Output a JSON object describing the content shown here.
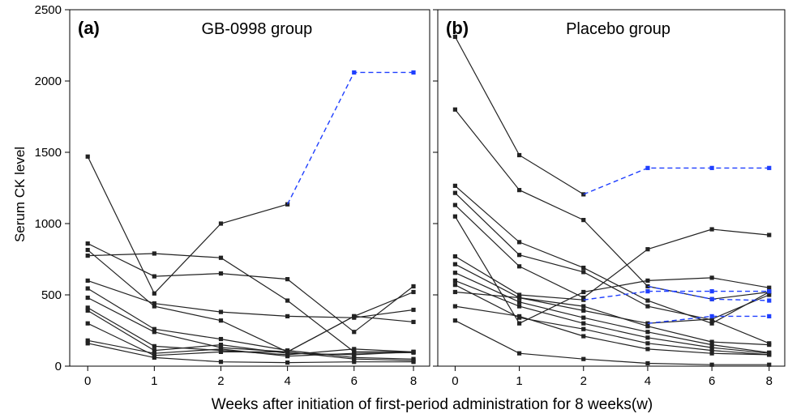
{
  "figure": {
    "ylabel": "Serum CK level",
    "xlabel": "Weeks after initiation of first-period administration for 8 weeks(w)"
  },
  "chart_data": [
    {
      "type": "line",
      "panel_tag": "(a)",
      "title": "GB-0998 group",
      "ylabel": "Serum CK level",
      "xlabel": "Weeks after initiation of first-period administration for 8 weeks(w)",
      "categories": [
        "0",
        "1",
        "2",
        "4",
        "6",
        "8"
      ],
      "y_ticks": [
        "0",
        "500",
        "1000",
        "1500",
        "2000",
        "2500"
      ],
      "ylim": [
        0,
        2500
      ],
      "grid": false,
      "marker": "square",
      "colors": {
        "subject": "#222222",
        "extrapolated": "#1f3fff",
        "axes": "#000000"
      },
      "series": [
        {
          "values": [
            1470,
            510,
            1000,
            1135,
            null,
            null
          ],
          "style": "solid"
        },
        {
          "values": [
            null,
            null,
            null,
            1135,
            2060,
            2060
          ],
          "style": "dashed"
        },
        {
          "values": [
            860,
            630,
            650,
            610,
            240,
            560
          ],
          "style": "solid"
        },
        {
          "values": [
            815,
            420,
            320,
            100,
            350,
            310
          ],
          "style": "solid"
        },
        {
          "values": [
            775,
            790,
            760,
            460,
            100,
            100
          ],
          "style": "solid"
        },
        {
          "values": [
            600,
            440,
            380,
            350,
            340,
            395
          ],
          "style": "solid"
        },
        {
          "values": [
            545,
            260,
            190,
            110,
            60,
            50
          ],
          "style": "solid"
        },
        {
          "values": [
            480,
            240,
            130,
            100,
            50,
            40
          ],
          "style": "solid"
        },
        {
          "values": [
            410,
            140,
            110,
            80,
            120,
            100
          ],
          "style": "solid"
        },
        {
          "values": [
            390,
            110,
            150,
            90,
            80,
            100
          ],
          "style": "solid"
        },
        {
          "values": [
            300,
            75,
            100,
            100,
            350,
            520
          ],
          "style": "solid"
        },
        {
          "values": [
            180,
            90,
            120,
            70,
            90,
            95
          ],
          "style": "solid"
        },
        {
          "values": [
            160,
            60,
            30,
            25,
            30,
            30
          ],
          "style": "solid"
        }
      ]
    },
    {
      "type": "line",
      "panel_tag": "(b)",
      "title": "Placebo group",
      "ylabel": "Serum CK level",
      "xlabel": "Weeks after initiation of first-period administration for 8 weeks(w)",
      "categories": [
        "0",
        "1",
        "2",
        "4",
        "6",
        "8"
      ],
      "y_ticks": [
        "0",
        "500",
        "1000",
        "1500",
        "2000",
        "2500"
      ],
      "ylim": [
        0,
        2500
      ],
      "grid": false,
      "marker": "square",
      "colors": {
        "subject": "#222222",
        "extrapolated": "#1f3fff",
        "axes": "#000000"
      },
      "series": [
        {
          "values": [
            2310,
            1480,
            1205,
            null,
            null,
            null
          ],
          "style": "solid"
        },
        {
          "values": [
            null,
            null,
            1205,
            1390,
            1390,
            1390
          ],
          "style": "dashed"
        },
        {
          "values": [
            1800,
            1235,
            1025,
            560,
            470,
            520
          ],
          "style": "solid"
        },
        {
          "values": [
            null,
            null,
            null,
            560,
            470,
            460
          ],
          "style": "dashed"
        },
        {
          "values": [
            1265,
            870,
            690,
            460,
            300,
            520
          ],
          "style": "solid"
        },
        {
          "values": [
            1215,
            780,
            660,
            420,
            325,
            160
          ],
          "style": "solid"
        },
        {
          "values": [
            1130,
            700,
            480,
            820,
            960,
            920
          ],
          "style": "solid"
        },
        {
          "values": [
            1050,
            300,
            520,
            600,
            620,
            550
          ],
          "style": "solid"
        },
        {
          "values": [
            770,
            500,
            465,
            null,
            null,
            null
          ],
          "style": "solid"
        },
        {
          "values": [
            null,
            null,
            465,
            525,
            525,
            525
          ],
          "style": "dashed"
        },
        {
          "values": [
            715,
            480,
            390,
            300,
            330,
            500
          ],
          "style": "solid"
        },
        {
          "values": [
            null,
            null,
            null,
            300,
            350,
            350
          ],
          "style": "dashed"
        },
        {
          "values": [
            655,
            450,
            340,
            240,
            150,
            95
          ],
          "style": "solid"
        },
        {
          "values": [
            600,
            420,
            300,
            200,
            130,
            90
          ],
          "style": "solid"
        },
        {
          "values": [
            570,
            340,
            260,
            160,
            110,
            80
          ],
          "style": "solid"
        },
        {
          "values": [
            520,
            480,
            420,
            280,
            170,
            150
          ],
          "style": "solid"
        },
        {
          "values": [
            420,
            350,
            210,
            120,
            90,
            80
          ],
          "style": "solid"
        },
        {
          "values": [
            320,
            90,
            50,
            20,
            10,
            10
          ],
          "style": "solid"
        }
      ]
    }
  ]
}
